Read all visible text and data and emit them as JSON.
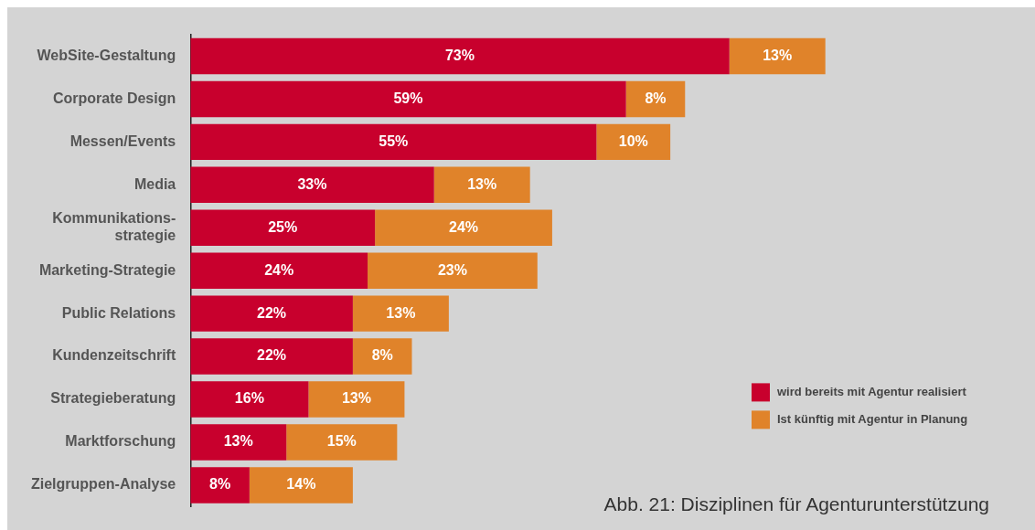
{
  "chart_data": {
    "type": "bar",
    "orientation": "horizontal",
    "stacked": true,
    "legend": "bottom right",
    "tick_labels": "y",
    "categories": [
      "WebSite-Gestaltung",
      "Corporate Design",
      "Messen/Events",
      "Media",
      "Kommunikations-strategie",
      "Marketing-Strategie",
      "Public Relations",
      "Kundenzeitschrift",
      "Strategieberatung",
      "Marktforschung",
      "Zielgruppen-Analyse"
    ],
    "series": [
      {
        "name": "wird bereits mit Agentur realisiert",
        "color": "#c8002d",
        "values": [
          73,
          59,
          55,
          33,
          25,
          24,
          22,
          22,
          16,
          13,
          8
        ],
        "value_labels": [
          "73%",
          "59%",
          "55%",
          "33%",
          "25%",
          "24%",
          "22%",
          "22%",
          "16%",
          "13%",
          "8%"
        ]
      },
      {
        "name": "Ist künftig mit Agentur in Planung",
        "color": "#e0832a",
        "values": [
          13,
          8,
          10,
          13,
          24,
          23,
          13,
          8,
          13,
          15,
          14
        ],
        "value_labels": [
          "13%",
          "8%",
          "10%",
          "13%",
          "24%",
          "23%",
          "13%",
          "8%",
          "13%",
          "15%",
          "14%"
        ]
      }
    ],
    "annotations": [
      "Abb. 21: Disziplinen für Agenturunterstützung"
    ]
  }
}
